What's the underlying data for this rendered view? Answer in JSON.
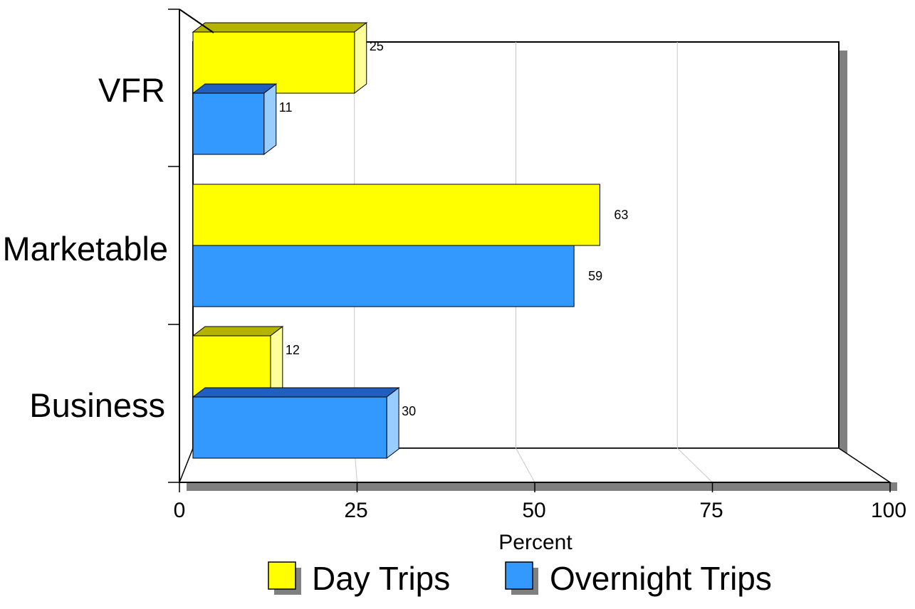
{
  "chart_data": {
    "type": "bar",
    "orientation": "horizontal",
    "categories": [
      "VFR",
      "Marketable",
      "Business"
    ],
    "series": [
      {
        "name": "Day Trips",
        "values": [
          25,
          63,
          12
        ],
        "color": "#ffff00",
        "side_color": "#ffff99",
        "top_color": "#b3b300"
      },
      {
        "name": "Overnight Trips",
        "values": [
          11,
          59,
          30
        ],
        "color": "#3399ff",
        "side_color": "#99ccff",
        "top_color": "#1f5fbf"
      }
    ],
    "xlabel": "Percent",
    "ylabel": "",
    "xlim": [
      0,
      100
    ],
    "xticks": [
      "0",
      "25",
      "50",
      "75",
      "100"
    ],
    "grid": true,
    "legend_position": "bottom",
    "style": "3d"
  }
}
